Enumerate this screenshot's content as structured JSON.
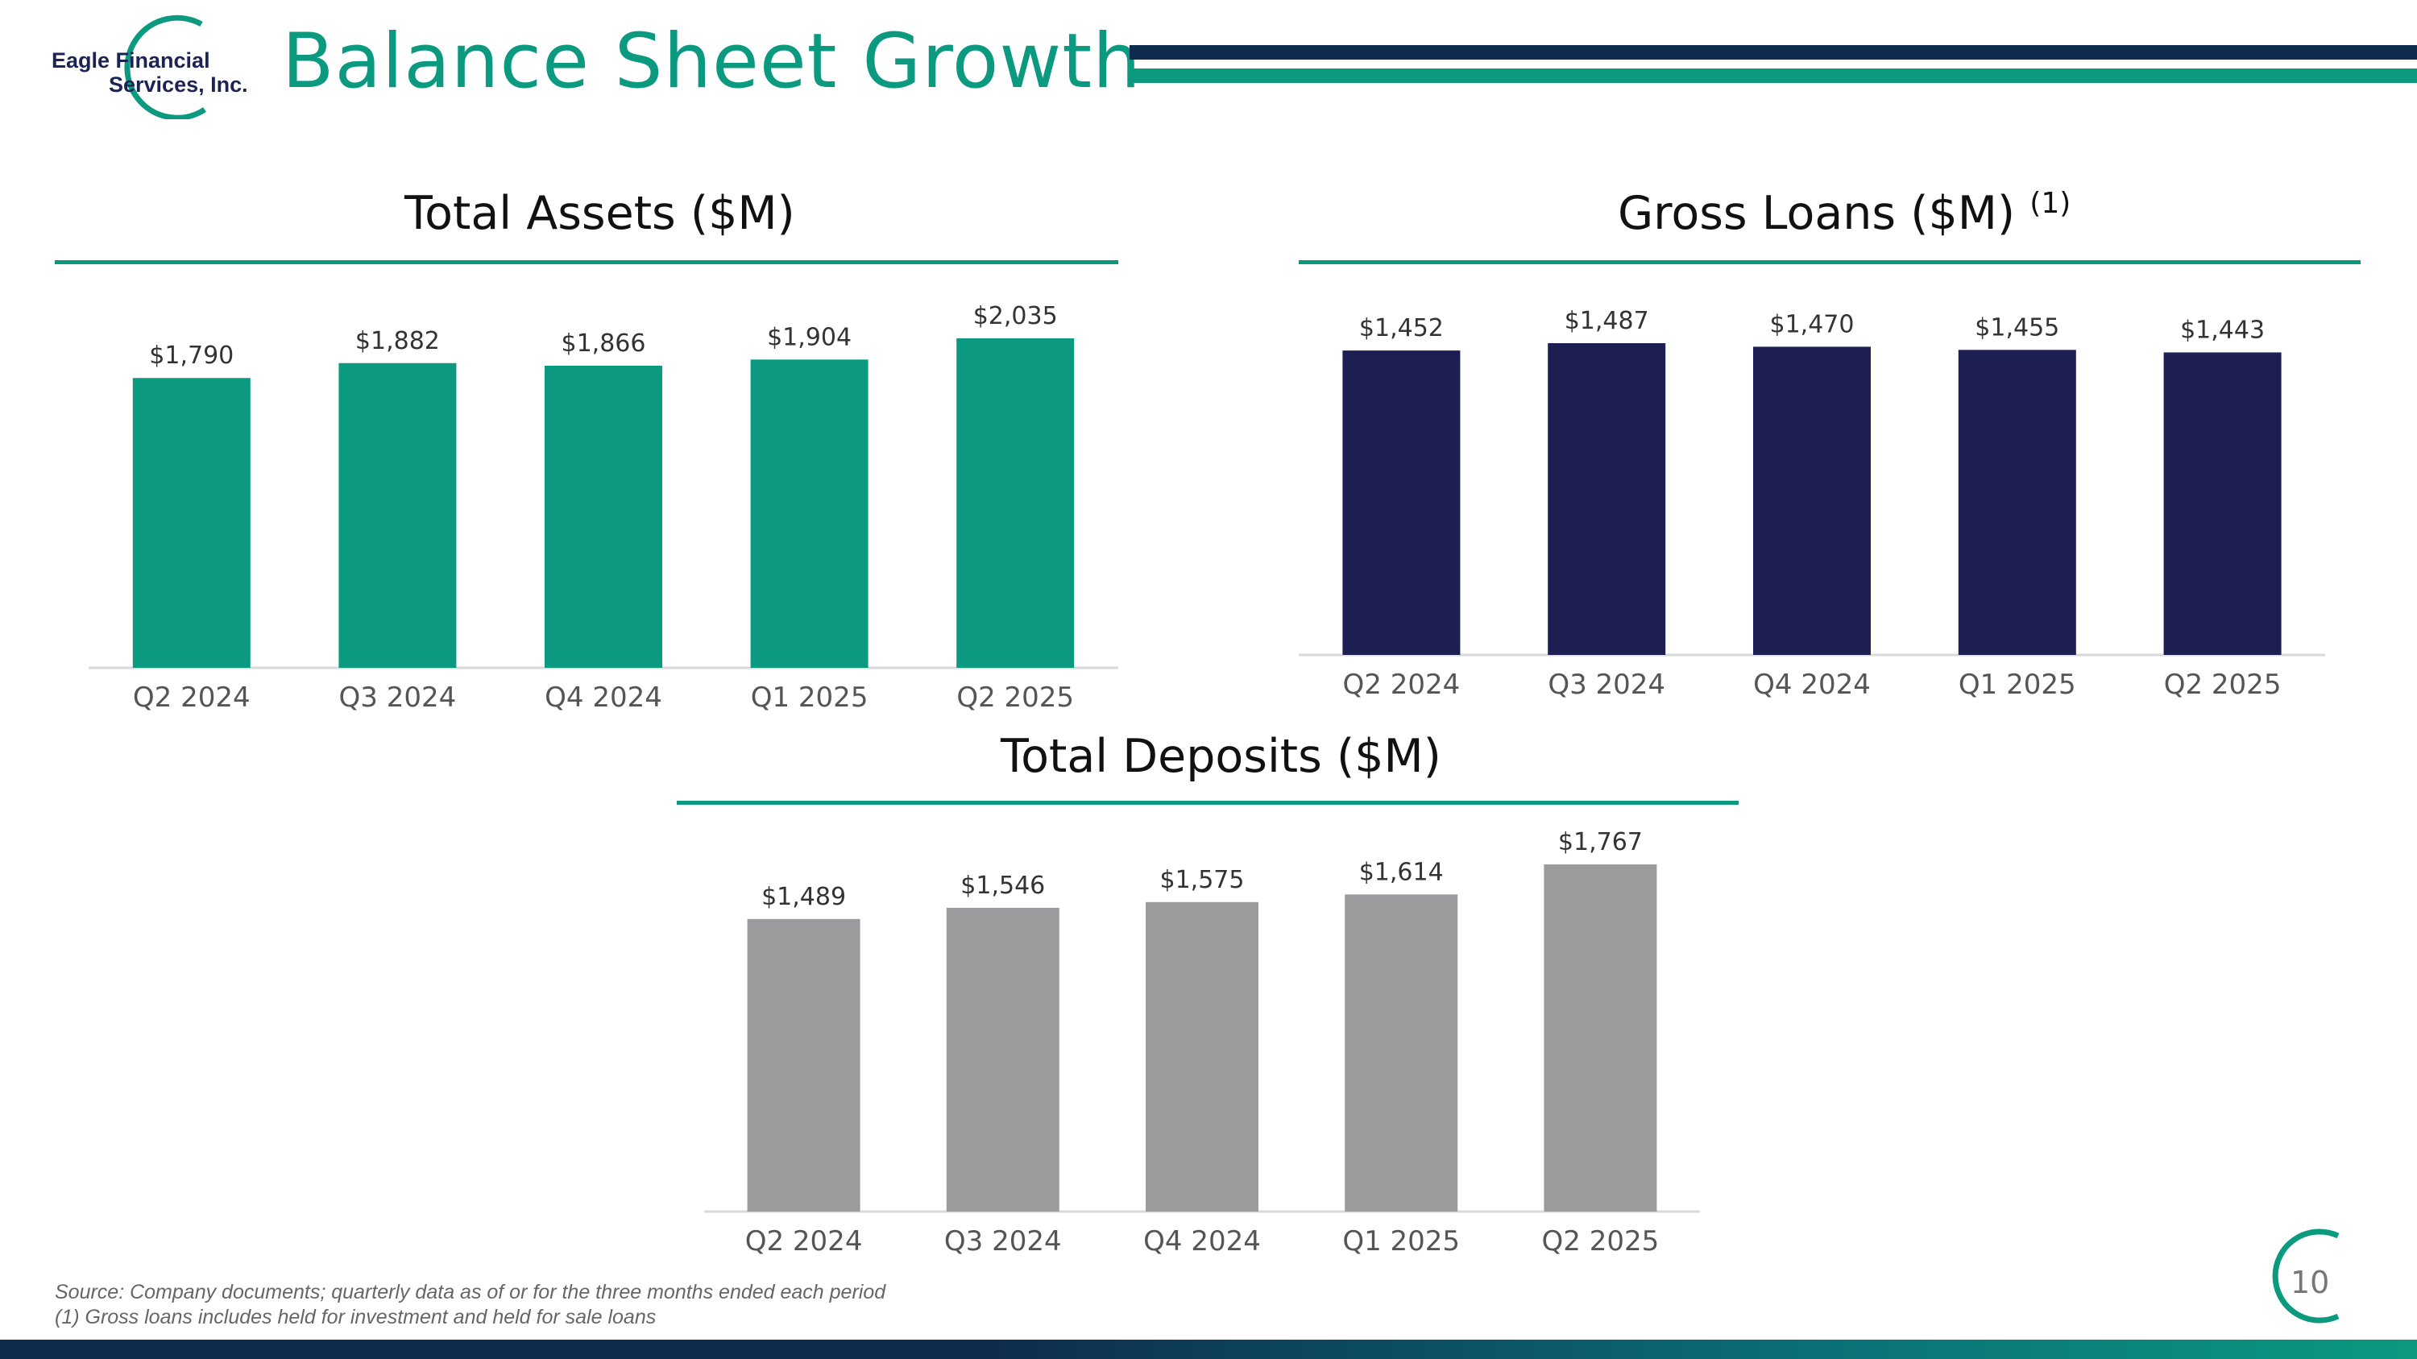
{
  "header": {
    "logo_line1": "Eagle Financial",
    "logo_line2": "Services, Inc.",
    "title": "Balance Sheet Growth"
  },
  "colors": {
    "teal": "#0b9a80",
    "navy": "#1d1f52",
    "gray": "#9a9b9d",
    "dark_navy": "#0e2a4d"
  },
  "chart_data": [
    {
      "id": "assets",
      "type": "bar",
      "title": "Total Assets ($M)",
      "title_suffix": "",
      "categories": [
        "Q2 2024",
        "Q3 2024",
        "Q4 2024",
        "Q1 2025",
        "Q2 2025"
      ],
      "values": [
        1790,
        1882,
        1866,
        1904,
        2035
      ],
      "labels": [
        "$1,790",
        "$1,882",
        "$1,866",
        "$1,904",
        "$2,035"
      ],
      "color": "#0b9a80",
      "ylim": [
        0,
        2035
      ]
    },
    {
      "id": "loans",
      "type": "bar",
      "title": "Gross Loans ($M)",
      "title_suffix": "(1)",
      "categories": [
        "Q2 2024",
        "Q3 2024",
        "Q4 2024",
        "Q1 2025",
        "Q2 2025"
      ],
      "values": [
        1452,
        1487,
        1470,
        1455,
        1443
      ],
      "labels": [
        "$1,452",
        "$1,487",
        "$1,470",
        "$1,455",
        "$1,443"
      ],
      "color": "#1d1f52",
      "ylim": [
        0,
        1487
      ]
    },
    {
      "id": "deposits",
      "type": "bar",
      "title": "Total Deposits ($M)",
      "title_suffix": "",
      "categories": [
        "Q2 2024",
        "Q3 2024",
        "Q4 2024",
        "Q1 2025",
        "Q2 2025"
      ],
      "values": [
        1489,
        1546,
        1575,
        1614,
        1767
      ],
      "labels": [
        "$1,489",
        "$1,546",
        "$1,575",
        "$1,614",
        "$1,767"
      ],
      "color": "#9a9b9d",
      "ylim": [
        0,
        1767
      ]
    }
  ],
  "footer": {
    "source": "Source: Company documents; quarterly data as of or for the three months ended each period",
    "note": "(1)    Gross loans includes held for investment and held for sale loans",
    "page_number": "10"
  }
}
